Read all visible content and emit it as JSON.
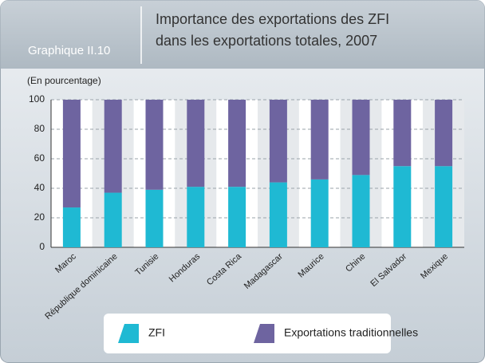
{
  "chart_data": {
    "type": "stacked-bar",
    "label": "Graphique II.10",
    "title": [
      "Importance des exportations des ZFI",
      "dans les exportations totales, 2007"
    ],
    "subtitle": "(En pourcentage)",
    "categories": [
      "Maroc",
      "République dominicaine",
      "Tunisie",
      "Honduras",
      "Costa Rica",
      "Madagascar",
      "Maurice",
      "Chine",
      "El Salvador",
      "Mexique"
    ],
    "series": [
      {
        "name": "ZFI",
        "color": "#1fb9d3",
        "values": [
          27,
          37,
          39,
          41,
          41,
          44,
          46,
          49,
          55,
          55
        ]
      },
      {
        "name": "Exportations traditionnelles",
        "color": "#6e64a0",
        "values": [
          73,
          63,
          61,
          59,
          59,
          56,
          54,
          51,
          45,
          45
        ]
      }
    ],
    "ylim": [
      0,
      100
    ],
    "yticks": [
      0,
      20,
      40,
      60,
      80,
      100
    ],
    "grid": true
  }
}
